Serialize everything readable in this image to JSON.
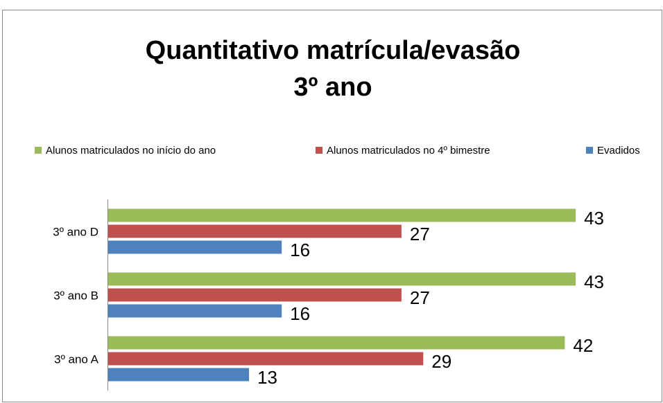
{
  "chart_data": {
    "type": "hbar",
    "title": [
      "Quantitativo matrícula/evasão",
      "3º ano"
    ],
    "categories": [
      "3º ano A",
      "3º ano B",
      "3º ano D"
    ],
    "series": [
      {
        "name": "Alunos matriculados no início do ano",
        "color": "#9bbb59",
        "values": [
          42,
          43,
          43
        ]
      },
      {
        "name": "Alunos matriculados no 4º bimestre",
        "color": "#c0504d",
        "values": [
          29,
          27,
          27
        ]
      },
      {
        "name": "Evadidos",
        "color": "#4f81bd",
        "values": [
          13,
          16,
          16
        ]
      }
    ],
    "xlim": [
      0,
      50
    ],
    "legend": "top"
  }
}
